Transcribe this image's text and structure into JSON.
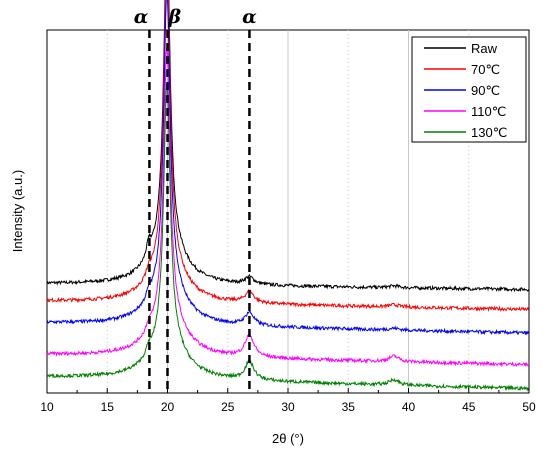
{
  "chart_data": {
    "type": "line",
    "title": "",
    "xlabel": "2θ (°)",
    "ylabel": "Intensity (a.u.)",
    "xlim": [
      10,
      50
    ],
    "x_ticks": [
      "10",
      "15",
      "20",
      "25",
      "30",
      "35",
      "40",
      "45",
      "50"
    ],
    "x_tick_values": [
      10,
      15,
      20,
      25,
      30,
      35,
      40,
      45,
      50
    ],
    "ylim": [
      0,
      100
    ],
    "y_ticks_shown": false,
    "grid": "vertical-dotted",
    "legend_position": "top-right",
    "reference_lines": [
      {
        "x": 18.5,
        "label": "α",
        "style": "dashed"
      },
      {
        "x": 20.0,
        "label": "β",
        "style": "dashed"
      },
      {
        "x": 26.8,
        "label": "α",
        "style": "dashed"
      }
    ],
    "series": [
      {
        "name": "Raw",
        "color": "#000000",
        "baseline": [
          30.0,
          28.5
        ],
        "peak20": 85,
        "peak185": 4,
        "peak268": 2,
        "peak39": 0.5
      },
      {
        "name": "70℃",
        "color": "#ff0000",
        "baseline": [
          25.2,
          23.0
        ],
        "peak20": 84,
        "peak185": 2,
        "peak268": 3,
        "peak39": 0.6
      },
      {
        "name": "90℃",
        "color": "#0000ff",
        "baseline": [
          19.2,
          16.5
        ],
        "peak20": 81,
        "peak185": 2,
        "peak268": 3.5,
        "peak39": 0.5
      },
      {
        "name": "110℃",
        "color": "#ff00ff",
        "baseline": [
          10.5,
          7.8
        ],
        "peak20": 75,
        "peak185": 2,
        "peak268": 6,
        "peak39": 1.5
      },
      {
        "name": "130℃",
        "color": "#008000",
        "baseline": [
          4.4,
          1.2
        ],
        "peak20": 71,
        "peak185": 2,
        "peak268": 5,
        "peak39": 1.5
      }
    ]
  }
}
